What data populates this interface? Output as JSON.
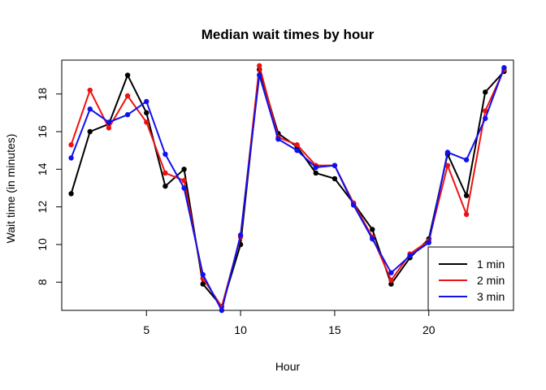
{
  "chart_data": {
    "type": "line",
    "title": "Median wait times by hour",
    "xlabel": "Hour",
    "ylabel": "Wait time (in minutes)",
    "xlim": [
      0.5,
      24.5
    ],
    "ylim": [
      6.5,
      19.8
    ],
    "xticks": [
      5,
      10,
      15,
      20
    ],
    "yticks": [
      8,
      10,
      12,
      14,
      16,
      18
    ],
    "grid": false,
    "legend_position": "bottom-right",
    "x": [
      1,
      2,
      3,
      4,
      5,
      6,
      7,
      8,
      9,
      10,
      11,
      12,
      13,
      14,
      15,
      16,
      17,
      18,
      19,
      20,
      21,
      22,
      23,
      24
    ],
    "series": [
      {
        "name": "1 min",
        "color": "#000000",
        "values": [
          12.7,
          16.0,
          16.4,
          19.0,
          17.0,
          13.1,
          14.0,
          7.9,
          6.7,
          10.0,
          19.3,
          15.9,
          15.2,
          13.8,
          13.5,
          12.2,
          10.8,
          7.9,
          9.3,
          10.3,
          14.8,
          12.6,
          18.1,
          19.2
        ]
      },
      {
        "name": "2 min",
        "color": "#ee1111",
        "values": [
          15.3,
          18.2,
          16.2,
          17.9,
          16.5,
          13.8,
          13.4,
          8.2,
          6.7,
          10.4,
          19.5,
          15.7,
          15.3,
          14.2,
          14.2,
          12.2,
          10.4,
          8.1,
          9.5,
          10.2,
          14.2,
          11.6,
          17.1,
          19.3
        ]
      },
      {
        "name": "3 min",
        "color": "#1010ee",
        "values": [
          14.6,
          17.2,
          16.5,
          16.9,
          17.6,
          14.8,
          13.0,
          8.4,
          6.5,
          10.5,
          19.0,
          15.6,
          15.0,
          14.1,
          14.2,
          12.1,
          10.3,
          8.5,
          9.4,
          10.1,
          14.9,
          14.5,
          16.7,
          19.4
        ]
      }
    ]
  }
}
